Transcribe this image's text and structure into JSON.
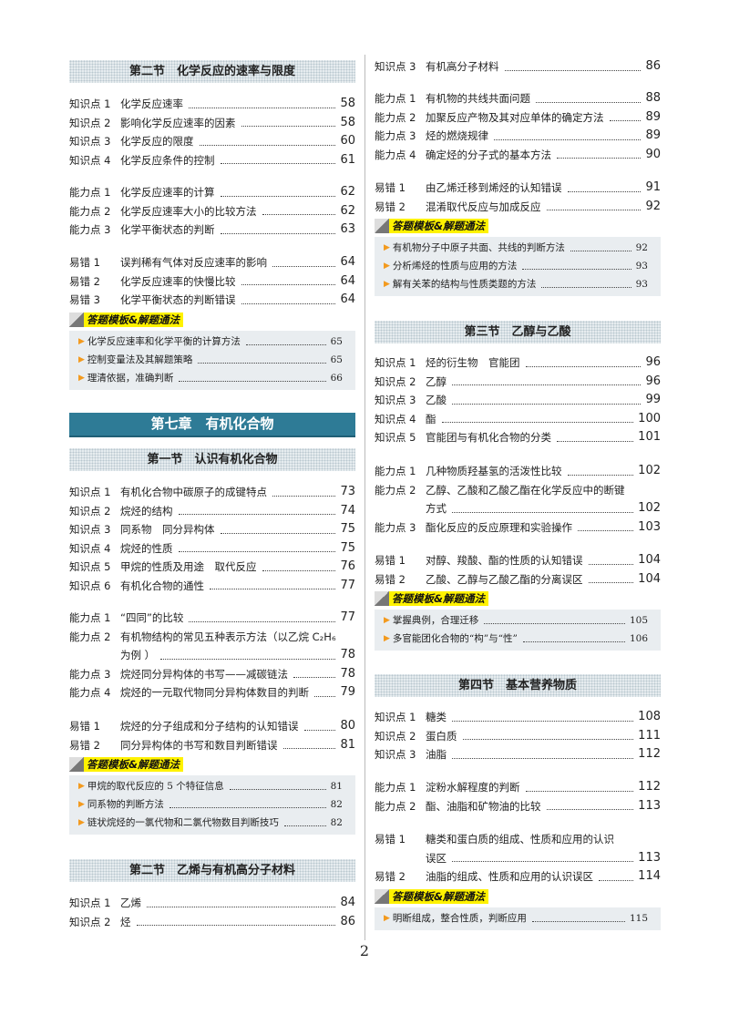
{
  "template_tag": "答题模板&解题通法",
  "page_number": "2",
  "colors": {
    "chapter_banner": "#2e7b96",
    "tag_highlight": "#fff200",
    "arrow": "#f39a1e",
    "template_box": "#e9edf0"
  },
  "left": [
    {
      "type": "section",
      "title": "第二节　化学反应的速率与限度"
    },
    {
      "type": "group",
      "items": [
        {
          "label": "知识点 1",
          "title": "化学反应速率",
          "page": "58"
        },
        {
          "label": "知识点 2",
          "title": "影响化学反应速率的因素",
          "page": "58"
        },
        {
          "label": "知识点 3",
          "title": "化学反应的限度",
          "page": "60"
        },
        {
          "label": "知识点 4",
          "title": "化学反应条件的控制",
          "page": "61"
        }
      ]
    },
    {
      "type": "group",
      "items": [
        {
          "label": "能力点 1",
          "title": "化学反应速率的计算",
          "page": "62"
        },
        {
          "label": "能力点 2",
          "title": "化学反应速率大小的比较方法",
          "page": "62"
        },
        {
          "label": "能力点 3",
          "title": "化学平衡状态的判断",
          "page": "63"
        }
      ]
    },
    {
      "type": "group",
      "items": [
        {
          "label": "易错 1",
          "title": "误判稀有气体对反应速率的影响",
          "page": "64"
        },
        {
          "label": "易错 2",
          "title": "化学反应速率的快慢比较",
          "page": "64"
        },
        {
          "label": "易错 3",
          "title": "化学平衡状态的判断错误",
          "page": "64"
        }
      ]
    },
    {
      "type": "template",
      "items": [
        {
          "title": "化学反应速率和化学平衡的计算方法",
          "page": "65"
        },
        {
          "title": "控制变量法及其解题策略",
          "page": "65"
        },
        {
          "title": "理清依据，准确判断",
          "page": "66"
        }
      ]
    },
    {
      "type": "chapter",
      "title": "第七章　有机化合物"
    },
    {
      "type": "section",
      "title": "第一节　认识有机化合物"
    },
    {
      "type": "group",
      "items": [
        {
          "label": "知识点 1",
          "title": "有机化合物中碳原子的成键特点",
          "page": "73"
        },
        {
          "label": "知识点 2",
          "title": "烷烃的结构",
          "page": "74"
        },
        {
          "label": "知识点 3",
          "title": "同系物　同分异构体",
          "page": "75"
        },
        {
          "label": "知识点 4",
          "title": "烷烃的性质",
          "page": "75"
        },
        {
          "label": "知识点 5",
          "title": "甲烷的性质及用途　取代反应",
          "page": "76"
        },
        {
          "label": "知识点 6",
          "title": "有机化合物的通性",
          "page": "77"
        }
      ]
    },
    {
      "type": "group",
      "items": [
        {
          "label": "能力点 1",
          "title": "“四同”的比较",
          "page": "77"
        },
        {
          "label": "能力点 2",
          "title": "有机物结构的常见五种表示方法（以乙烷 C₂H₆",
          "title_cont": "为例 ）",
          "page": "78"
        },
        {
          "label": "能力点 3",
          "title": "烷烃同分异构体的书写——减碳链法",
          "page": "78"
        },
        {
          "label": "能力点 4",
          "title": "烷烃的一元取代物同分异构体数目的判断",
          "page": "79"
        }
      ]
    },
    {
      "type": "group",
      "items": [
        {
          "label": "易错 1",
          "title": "烷烃的分子组成和分子结构的认知错误",
          "page": "80"
        },
        {
          "label": "易错 2",
          "title": "同分异构体的书写和数目判断错误",
          "page": "81"
        }
      ]
    },
    {
      "type": "template",
      "items": [
        {
          "title": "甲烷的取代反应的 5 个特征信息",
          "page": "81"
        },
        {
          "title": "同系物的判断方法",
          "page": "82"
        },
        {
          "title": "链状烷烃的一氯代物和二氯代物数目判断技巧",
          "page": "82"
        }
      ]
    },
    {
      "type": "section",
      "title": "第二节　乙烯与有机高分子材料"
    },
    {
      "type": "group",
      "items": [
        {
          "label": "知识点 1",
          "title": "乙烯",
          "page": "84"
        },
        {
          "label": "知识点 2",
          "title": "烃",
          "page": "86"
        }
      ]
    }
  ],
  "right": [
    {
      "type": "group",
      "items": [
        {
          "label": "知识点 3",
          "title": "有机高分子材料",
          "page": "86"
        }
      ]
    },
    {
      "type": "group",
      "items": [
        {
          "label": "能力点 1",
          "title": "有机物的共线共面问题",
          "page": "88"
        },
        {
          "label": "能力点 2",
          "title": "加聚反应产物及其对应单体的确定方法",
          "page": "89"
        },
        {
          "label": "能力点 3",
          "title": "烃的燃烧规律",
          "page": "89"
        },
        {
          "label": "能力点 4",
          "title": "确定烃的分子式的基本方法",
          "page": "90"
        }
      ]
    },
    {
      "type": "group",
      "items": [
        {
          "label": "易错 1",
          "title": "由乙烯迁移到烯烃的认知错误",
          "page": "91"
        },
        {
          "label": "易错 2",
          "title": "混淆取代反应与加成反应",
          "page": "92"
        }
      ]
    },
    {
      "type": "template",
      "items": [
        {
          "title": "有机物分子中原子共面、共线的判断方法",
          "page": "92"
        },
        {
          "title": "分析烯烃的性质与应用的方法",
          "page": "93"
        },
        {
          "title": "解有关苯的结构与性质类题的方法",
          "page": "93"
        }
      ]
    },
    {
      "type": "section",
      "title": "第三节　乙醇与乙酸"
    },
    {
      "type": "group",
      "items": [
        {
          "label": "知识点 1",
          "title": "烃的衍生物　官能团",
          "page": "96"
        },
        {
          "label": "知识点 2",
          "title": "乙醇",
          "page": "96"
        },
        {
          "label": "知识点 3",
          "title": "乙酸",
          "page": "99"
        },
        {
          "label": "知识点 4",
          "title": "酯",
          "page": "100"
        },
        {
          "label": "知识点 5",
          "title": "官能团与有机化合物的分类",
          "page": "101"
        }
      ]
    },
    {
      "type": "group",
      "items": [
        {
          "label": "能力点 1",
          "title": "几种物质羟基氢的活泼性比较",
          "page": "102"
        },
        {
          "label": "能力点 2",
          "title": "乙醇、乙酸和乙酸乙酯在化学反应中的断键",
          "title_cont": "方式",
          "page": "102"
        },
        {
          "label": "能力点 3",
          "title": "酯化反应的反应原理和实验操作",
          "page": "103"
        }
      ]
    },
    {
      "type": "group",
      "items": [
        {
          "label": "易错 1",
          "title": "对醇、羧酸、酯的性质的认知错误",
          "page": "104"
        },
        {
          "label": "易错 2",
          "title": "乙酸、乙醇与乙酸乙酯的分离误区",
          "page": "104"
        }
      ]
    },
    {
      "type": "template",
      "items": [
        {
          "title": "掌握典例，合理迁移",
          "page": "105"
        },
        {
          "title": "多官能团化合物的“构”与“性”",
          "page": "106"
        }
      ]
    },
    {
      "type": "section",
      "title": "第四节　基本营养物质"
    },
    {
      "type": "group",
      "items": [
        {
          "label": "知识点 1",
          "title": "糖类",
          "page": "108"
        },
        {
          "label": "知识点 2",
          "title": "蛋白质",
          "page": "111"
        },
        {
          "label": "知识点 3",
          "title": "油脂",
          "page": "112"
        }
      ]
    },
    {
      "type": "group",
      "items": [
        {
          "label": "能力点 1",
          "title": "淀粉水解程度的判断",
          "page": "112"
        },
        {
          "label": "能力点 2",
          "title": "酯、油脂和矿物油的比较",
          "page": "113"
        }
      ]
    },
    {
      "type": "group",
      "items": [
        {
          "label": "易错 1",
          "title": "糖类和蛋白质的组成、性质和应用的认识",
          "title_cont": "误区",
          "page": "113"
        },
        {
          "label": "易错 2",
          "title": "油脂的组成、性质和应用的认识误区",
          "page": "114"
        }
      ]
    },
    {
      "type": "template",
      "items": [
        {
          "title": "明断组成，整合性质，判断应用",
          "page": "115"
        }
      ]
    }
  ]
}
